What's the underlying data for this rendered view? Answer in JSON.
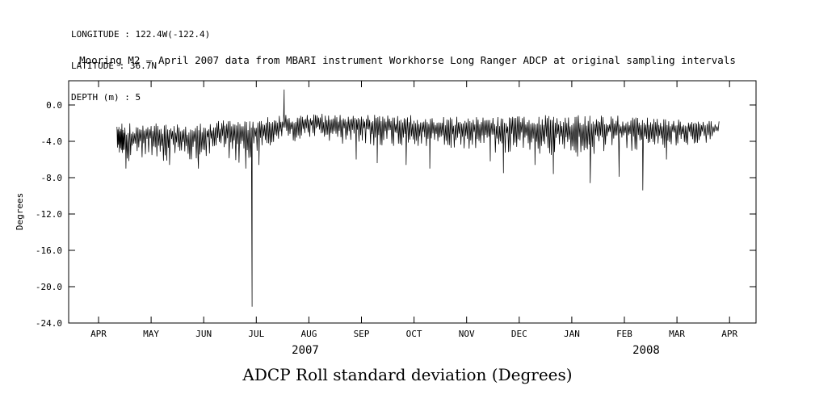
{
  "header": {
    "longitude": "LONGITUDE : 122.4W(-122.4)",
    "latitude": "LATITUDE : 36.7N",
    "depth": "DEPTH (m) : 5"
  },
  "title": "Mooring M2 – April 2007 data from MBARI instrument Workhorse Long Ranger ADCP at original sampling intervals",
  "caption": "ADCP Roll standard deviation (Degrees)",
  "chart_data": {
    "type": "line",
    "series_name": "ADCP Roll standard deviation",
    "title": "Mooring M2 – April 2007 data from MBARI instrument Workhorse Long Ranger ADCP at original sampling intervals",
    "xlabel": "",
    "ylabel": "Degrees",
    "ylim": [
      -24.0,
      2.7
    ],
    "grid": false,
    "legend": "none",
    "line_color": "#000000",
    "yticks": [
      {
        "label": "0.0",
        "value": 0
      },
      {
        "label": "-4.0",
        "value": -4
      },
      {
        "label": "-8.0",
        "value": -8
      },
      {
        "label": "-12.0",
        "value": -12
      },
      {
        "label": "-16.0",
        "value": -16
      },
      {
        "label": "-20.0",
        "value": -20
      },
      {
        "label": "-24.0",
        "value": -24
      }
    ],
    "xticks": [
      {
        "label": "APR",
        "m": 0
      },
      {
        "label": "MAY",
        "m": 1
      },
      {
        "label": "JUN",
        "m": 2
      },
      {
        "label": "JUL",
        "m": 3
      },
      {
        "label": "AUG",
        "m": 4
      },
      {
        "label": "SEP",
        "m": 5
      },
      {
        "label": "OCT",
        "m": 6
      },
      {
        "label": "NOV",
        "m": 7
      },
      {
        "label": "DEC",
        "m": 8
      },
      {
        "label": "JAN",
        "m": 9
      },
      {
        "label": "FEB",
        "m": 10
      },
      {
        "label": "MAR",
        "m": 11
      },
      {
        "label": "APR",
        "m": 12
      }
    ],
    "year_labels": [
      "2007",
      "2008"
    ],
    "envelope_note": "per-interval band [x_month_from_APR2007, band_top_deg, band_bottom_deg] of noisy roll std-dev trace",
    "envelope": [
      [
        0.35,
        -2.2,
        -5.0
      ],
      [
        0.5,
        -1.8,
        -6.8
      ],
      [
        0.75,
        -2.0,
        -6.0
      ],
      [
        1.0,
        -1.8,
        -5.5
      ],
      [
        1.25,
        -2.0,
        -6.3
      ],
      [
        1.5,
        -2.0,
        -5.5
      ],
      [
        1.75,
        -2.2,
        -6.4
      ],
      [
        2.0,
        -1.8,
        -5.8
      ],
      [
        2.25,
        -1.6,
        -5.2
      ],
      [
        2.5,
        -1.6,
        -6.0
      ],
      [
        2.75,
        -1.5,
        -6.6
      ],
      [
        3.0,
        -1.6,
        -5.2
      ],
      [
        3.25,
        -1.2,
        -4.6
      ],
      [
        3.5,
        -1.0,
        -4.0
      ],
      [
        3.75,
        -1.0,
        -4.4
      ],
      [
        4.0,
        -0.8,
        -3.6
      ],
      [
        4.25,
        -0.9,
        -4.2
      ],
      [
        4.5,
        -1.0,
        -4.6
      ],
      [
        4.75,
        -1.0,
        -4.0
      ],
      [
        5.0,
        -0.8,
        -4.2
      ],
      [
        5.25,
        -0.9,
        -4.6
      ],
      [
        5.5,
        -1.0,
        -4.4
      ],
      [
        5.75,
        -1.0,
        -5.0
      ],
      [
        6.0,
        -1.0,
        -4.6
      ],
      [
        6.25,
        -1.1,
        -5.0
      ],
      [
        6.5,
        -1.2,
        -4.6
      ],
      [
        6.75,
        -1.2,
        -5.0
      ],
      [
        7.0,
        -1.0,
        -4.8
      ],
      [
        7.25,
        -1.1,
        -5.0
      ],
      [
        7.5,
        -1.2,
        -5.2
      ],
      [
        7.75,
        -1.2,
        -5.4
      ],
      [
        8.0,
        -1.0,
        -5.0
      ],
      [
        8.25,
        -1.0,
        -5.2
      ],
      [
        8.5,
        -1.0,
        -5.6
      ],
      [
        8.75,
        -1.1,
        -5.4
      ],
      [
        9.0,
        -1.0,
        -5.6
      ],
      [
        9.25,
        -1.0,
        -5.8
      ],
      [
        9.5,
        -1.1,
        -5.2
      ],
      [
        9.75,
        -1.0,
        -5.0
      ],
      [
        10.0,
        -1.2,
        -5.2
      ],
      [
        10.25,
        -1.3,
        -5.0
      ],
      [
        10.5,
        -1.3,
        -4.6
      ],
      [
        10.75,
        -1.4,
        -4.8
      ],
      [
        11.0,
        -1.5,
        -4.6
      ],
      [
        11.25,
        -1.5,
        -4.4
      ],
      [
        11.5,
        -1.6,
        -4.2
      ],
      [
        11.8,
        -1.8,
        -4.0
      ]
    ],
    "deep_dips": [
      {
        "x": 0.52,
        "y": -7.0
      },
      {
        "x": 1.35,
        "y": -6.6
      },
      {
        "x": 1.9,
        "y": -7.0
      },
      {
        "x": 2.8,
        "y": -7.0
      },
      {
        "x": 3.05,
        "y": -6.6
      },
      {
        "x": 4.9,
        "y": -6.0
      },
      {
        "x": 5.3,
        "y": -6.4
      },
      {
        "x": 5.85,
        "y": -6.6
      },
      {
        "x": 6.3,
        "y": -7.0
      },
      {
        "x": 7.45,
        "y": -6.2
      },
      {
        "x": 7.7,
        "y": -7.5
      },
      {
        "x": 8.3,
        "y": -6.6
      },
      {
        "x": 8.65,
        "y": -7.6
      },
      {
        "x": 9.35,
        "y": -8.6
      },
      {
        "x": 9.9,
        "y": -7.9
      },
      {
        "x": 10.35,
        "y": -9.4
      },
      {
        "x": 10.8,
        "y": -6.0
      }
    ],
    "spikes": [
      {
        "x": 2.92,
        "y": -22.2,
        "direction": "down"
      },
      {
        "x": 3.53,
        "y": 1.7,
        "direction": "up"
      }
    ]
  }
}
